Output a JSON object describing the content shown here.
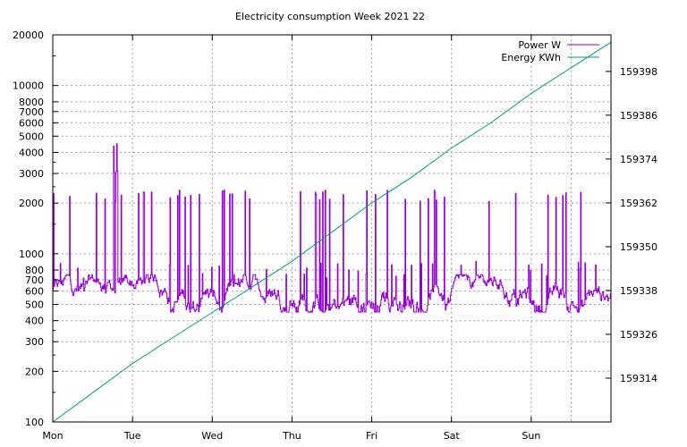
{
  "chart_data": {
    "type": "line",
    "title": "Electricity consumption Week 2021 22",
    "grid": true,
    "legend_position": "top-right",
    "x_ticks": [
      "Mon",
      "Tue",
      "Wed",
      "Thu",
      "Fri",
      "Sat",
      "Sun"
    ],
    "xlim_days": [
      0,
      7
    ],
    "y_left": {
      "scale": "log",
      "range": [
        100,
        20000
      ],
      "ticks": [
        100,
        200,
        300,
        400,
        500,
        600,
        700,
        800,
        1000,
        2000,
        3000,
        4000,
        5000,
        6000,
        7000,
        8000,
        10000,
        20000
      ]
    },
    "y_right": {
      "scale": "linear",
      "range": [
        159302,
        159408
      ],
      "ticks": [
        159314,
        159326,
        159338,
        159350,
        159362,
        159374,
        159386,
        159398
      ]
    },
    "series": [
      {
        "name": "Power W",
        "axis": "left",
        "color": "#9400d3",
        "baseline_range_w": [
          450,
          750
        ],
        "spike_peak_w": 2400,
        "max_peak_w": 4500
      },
      {
        "name": "Energy KWh",
        "axis": "right",
        "color": "#009e73",
        "x": [
          0,
          0.5,
          1,
          1.5,
          2,
          2.5,
          3,
          3.5,
          4,
          4.5,
          5,
          5.5,
          6,
          6.5,
          7
        ],
        "y": [
          159302,
          159310,
          159318,
          159325,
          159332,
          159339,
          159346,
          159354,
          159362,
          159369,
          159377,
          159384,
          159392,
          159399,
          159406
        ]
      }
    ]
  }
}
